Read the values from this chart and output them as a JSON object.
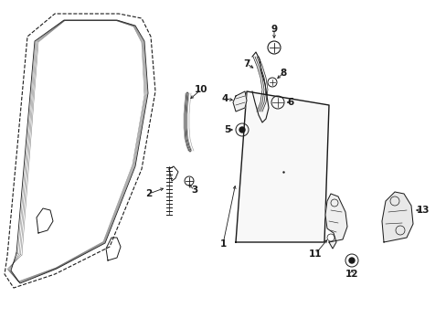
{
  "bg_color": "#ffffff",
  "fig_width": 4.89,
  "fig_height": 3.6,
  "dpi": 100,
  "line_color": "#1a1a1a",
  "font_size": 7.5
}
